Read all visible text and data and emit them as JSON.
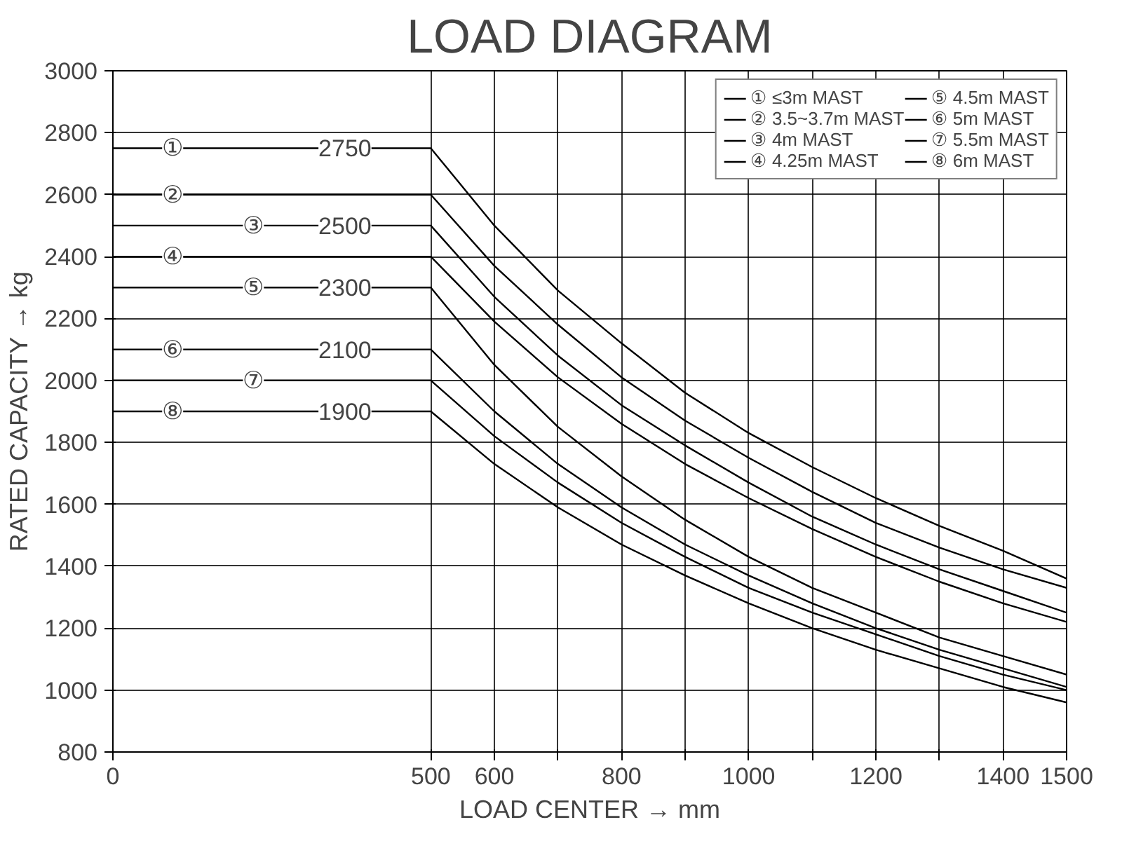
{
  "chart_data": {
    "type": "line",
    "title": "LOAD DIAGRAM",
    "xlabel": "LOAD CENTER → mm",
    "ylabel": "RATED CAPACITY → kg",
    "x": [
      0,
      500,
      600,
      700,
      800,
      900,
      1000,
      1100,
      1200,
      1300,
      1400,
      1500
    ],
    "series": [
      {
        "name": "① ≤3m MAST",
        "color": "#000000",
        "values": [
          2750,
          2750,
          2500,
          2290,
          2120,
          1960,
          1830,
          1720,
          1620,
          1530,
          1450,
          1360
        ]
      },
      {
        "name": "② 3.5~3.7m MAST",
        "color": "#000000",
        "values": [
          2600,
          2600,
          2370,
          2180,
          2010,
          1870,
          1750,
          1640,
          1540,
          1460,
          1390,
          1330
        ]
      },
      {
        "name": "③ 4m MAST",
        "color": "#000000",
        "values": [
          2500,
          2500,
          2270,
          2080,
          1920,
          1790,
          1670,
          1560,
          1470,
          1390,
          1320,
          1250
        ]
      },
      {
        "name": "④ 4.25m MAST",
        "color": "#000000",
        "values": [
          2400,
          2400,
          2190,
          2010,
          1860,
          1730,
          1620,
          1520,
          1430,
          1350,
          1280,
          1220
        ]
      },
      {
        "name": "⑤ 4.5m MAST",
        "color": "#000000",
        "values": [
          2300,
          2300,
          2050,
          1850,
          1690,
          1550,
          1430,
          1330,
          1250,
          1170,
          1110,
          1050
        ]
      },
      {
        "name": "⑥ 5m MAST",
        "color": "#000000",
        "values": [
          2100,
          2100,
          1900,
          1730,
          1590,
          1470,
          1370,
          1280,
          1200,
          1130,
          1070,
          1010
        ]
      },
      {
        "name": "⑦ 5.5m MAST",
        "color": "#000000",
        "values": [
          2000,
          2000,
          1820,
          1670,
          1540,
          1430,
          1330,
          1250,
          1180,
          1110,
          1050,
          1000
        ]
      },
      {
        "name": "⑧ 6m MAST",
        "color": "#000000",
        "values": [
          1900,
          1900,
          1730,
          1590,
          1470,
          1370,
          1280,
          1200,
          1130,
          1070,
          1010,
          960
        ]
      }
    ],
    "xlim": [
      0,
      1500
    ],
    "ylim": [
      800,
      3000
    ],
    "xticks": [
      0,
      500,
      600,
      {
        "value": 700,
        "label": null
      },
      800,
      {
        "value": 900,
        "label": null
      },
      1000,
      {
        "value": 1100,
        "label": null
      },
      1200,
      {
        "value": 1300,
        "label": null
      },
      1400,
      1500
    ],
    "yticks": [
      800,
      1000,
      1200,
      1400,
      1600,
      1800,
      2000,
      2200,
      2400,
      2600,
      2800,
      3000
    ],
    "grid": true,
    "legend": "top right",
    "marker": "none",
    "line_style": "solid",
    "annotations": [
      {
        "text": "①",
        "x": 94,
        "y": 2750
      },
      {
        "text": "②",
        "x": 94,
        "y": 2600
      },
      {
        "text": "③",
        "x": 221,
        "y": 2500
      },
      {
        "text": "④",
        "x": 94,
        "y": 2400
      },
      {
        "text": "⑤",
        "x": 221,
        "y": 2300
      },
      {
        "text": "⑥",
        "x": 94,
        "y": 2100
      },
      {
        "text": "⑦",
        "x": 221,
        "y": 2000
      },
      {
        "text": "⑧",
        "x": 94,
        "y": 1900
      },
      {
        "text": "2750",
        "x": 365,
        "y": 2750
      },
      {
        "text": "2500",
        "x": 365,
        "y": 2500
      },
      {
        "text": "2300",
        "x": 365,
        "y": 2300
      },
      {
        "text": "2100",
        "x": 365,
        "y": 2100
      },
      {
        "text": "1900",
        "x": 365,
        "y": 1900
      }
    ]
  }
}
